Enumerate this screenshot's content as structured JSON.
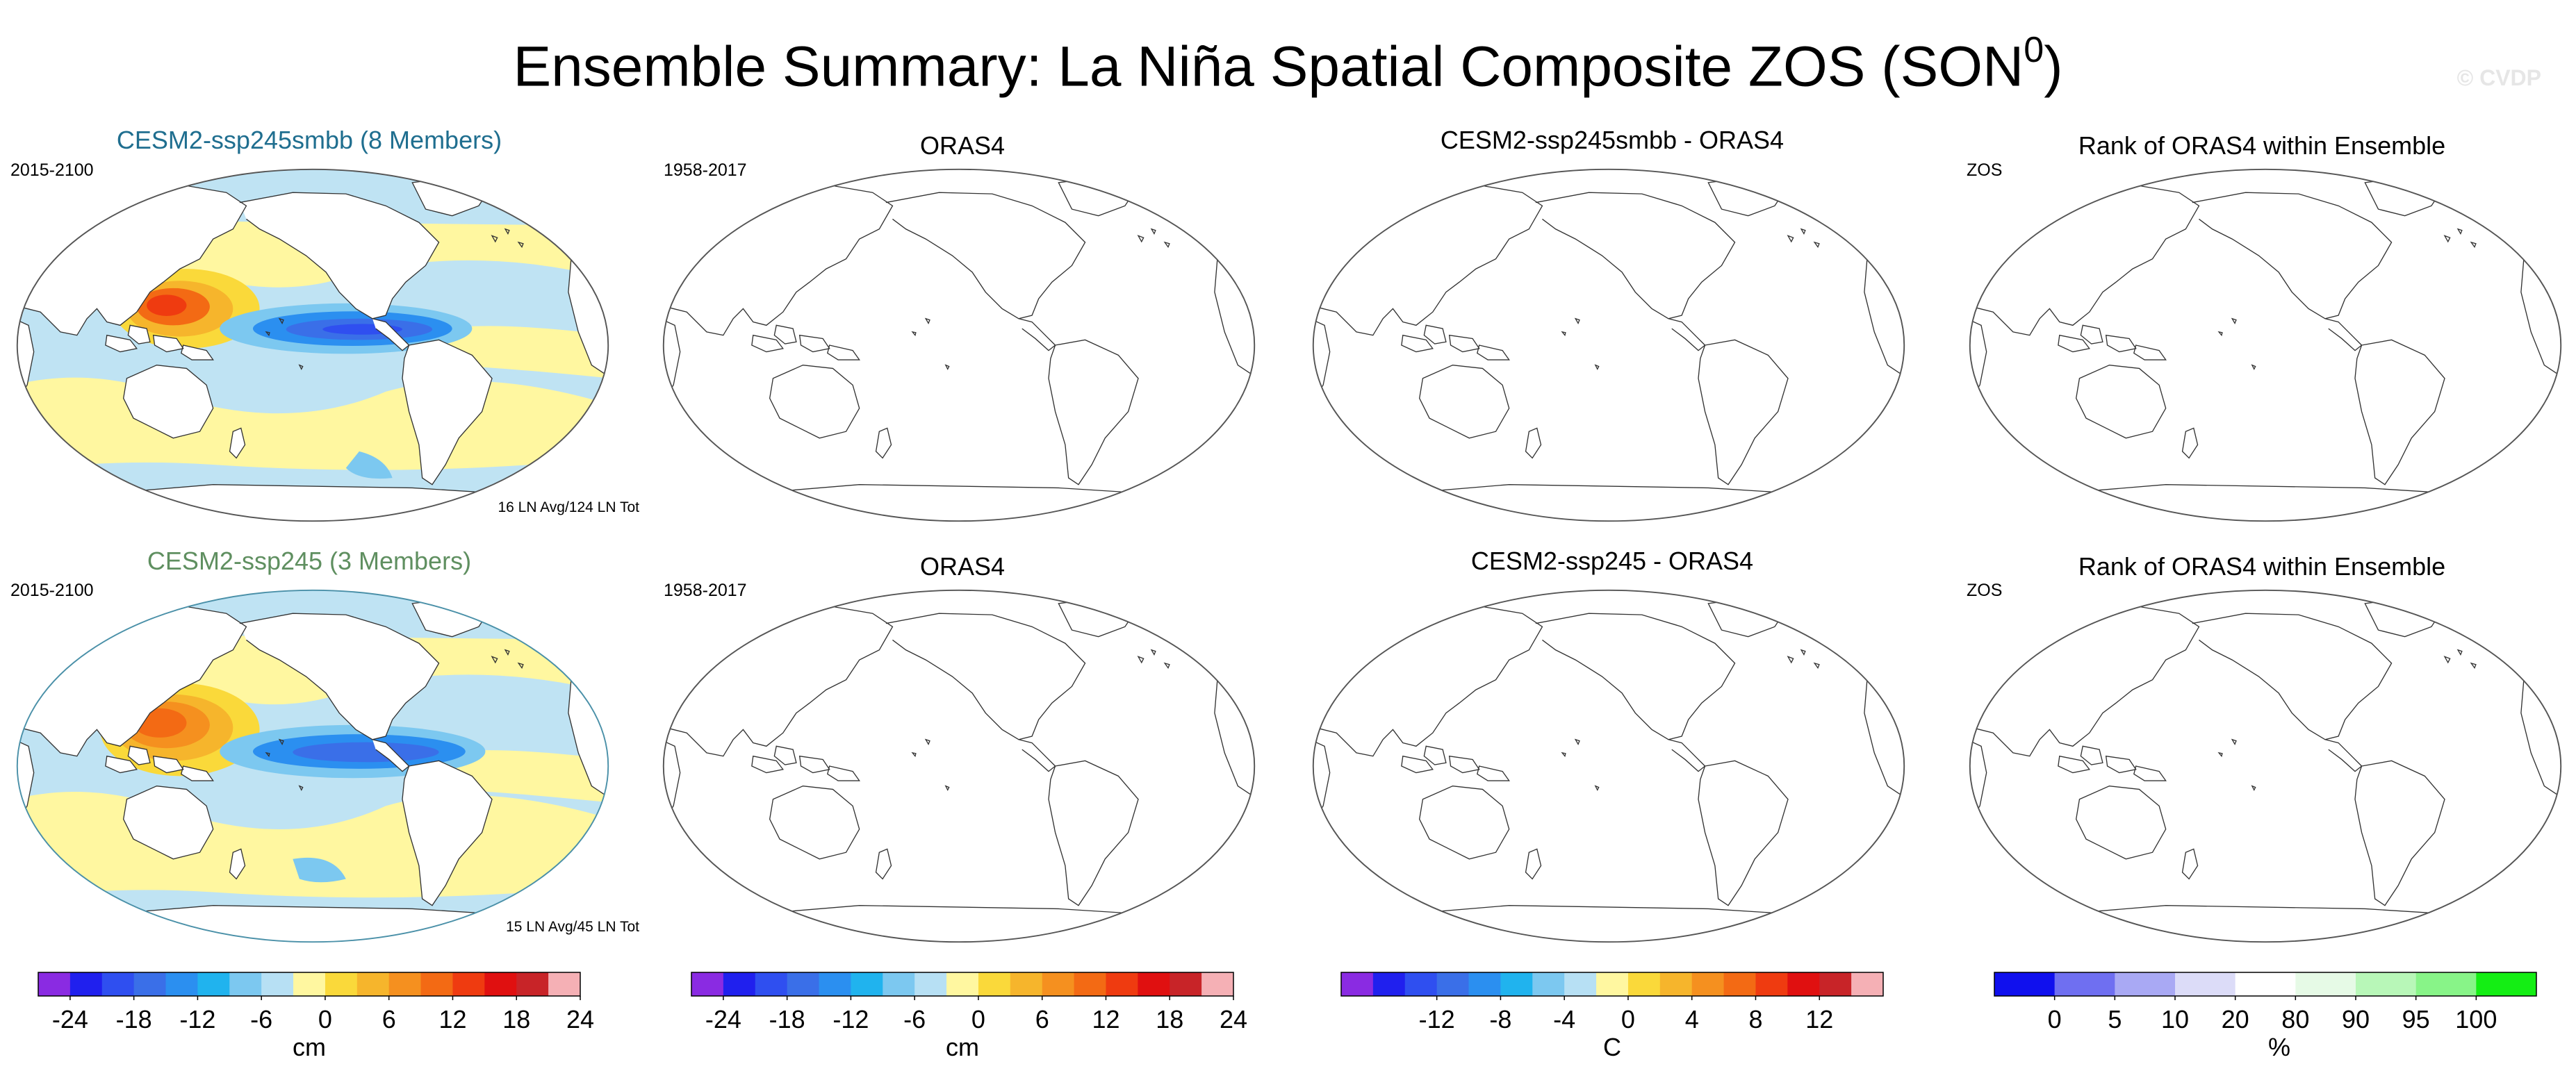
{
  "title": {
    "main": "Ensemble Summary: La Niña Spatial Composite ZOS (SON",
    "superscript": "0",
    "close": ")"
  },
  "watermark": "© CVDP",
  "colors": {
    "ocean_base": "#bfe3f3",
    "rank_scale": [
      "#1010ee",
      "#6f6ff1",
      "#a9a9f4",
      "#dcdcf8",
      "#ffffff",
      "#e6fae6",
      "#b8f7b8",
      "#88f488",
      "#14ee14"
    ],
    "diverging_scale": [
      "#8a2be2",
      "#2020ee",
      "#2f4ff0",
      "#3a6fe8",
      "#2b8ff0",
      "#20b3ee",
      "#7cc8f0",
      "#b7e0f4",
      "#fff7a0",
      "#fad93a",
      "#f6b52c",
      "#f5901f",
      "#f36a14",
      "#ef3b10",
      "#e01010",
      "#c82428",
      "#f5b0b5"
    ]
  },
  "rows": [
    {
      "panels": [
        {
          "title": "CESM2-ssp245smbb (8 Members)",
          "title_color": "#1f6e8f",
          "label": "2015-2100",
          "footer": "16 LN Avg/124 LN Tot",
          "filled": true
        },
        {
          "title": "ORAS4",
          "title_color": "#000000",
          "label": "1958-2017",
          "footer": "",
          "filled": false
        },
        {
          "title": "CESM2-ssp245smbb - ORAS4",
          "title_color": "#000000",
          "label": "",
          "footer": "",
          "filled": false
        },
        {
          "title": "Rank of ORAS4 within Ensemble",
          "title_color": "#000000",
          "label": "ZOS",
          "footer": "",
          "filled": false
        }
      ]
    },
    {
      "panels": [
        {
          "title": "CESM2-ssp245 (3 Members)",
          "title_color": "#5f8f60",
          "label": "2015-2100",
          "footer": "15 LN Avg/45 LN Tot",
          "filled": true
        },
        {
          "title": "ORAS4",
          "title_color": "#000000",
          "label": "1958-2017",
          "footer": "",
          "filled": false
        },
        {
          "title": "CESM2-ssp245 - ORAS4",
          "title_color": "#000000",
          "label": "",
          "footer": "",
          "filled": false
        },
        {
          "title": "Rank of ORAS4 within Ensemble",
          "title_color": "#000000",
          "label": "ZOS",
          "footer": "",
          "filled": false
        }
      ]
    }
  ],
  "colorbars": [
    {
      "unit": "cm",
      "type": "diverging",
      "ticks": [
        "-24",
        "-18",
        "-12",
        "-6",
        "0",
        "6",
        "12",
        "18",
        "24"
      ],
      "tick_boundaries": [
        1,
        3,
        5,
        7,
        9,
        11,
        13,
        15,
        17
      ]
    },
    {
      "unit": "cm",
      "type": "diverging",
      "ticks": [
        "-24",
        "-18",
        "-12",
        "-6",
        "0",
        "6",
        "12",
        "18",
        "24"
      ],
      "tick_boundaries": [
        1,
        3,
        5,
        7,
        9,
        11,
        13,
        15,
        17
      ]
    },
    {
      "unit": "C",
      "type": "diverging",
      "ticks": [
        "-12",
        "-8",
        "-4",
        "0",
        "4",
        "8",
        "12"
      ],
      "tick_boundaries": [
        3,
        5,
        7,
        9,
        11,
        13,
        15
      ]
    },
    {
      "unit": "%",
      "type": "rank",
      "ticks": [
        "0",
        "5",
        "10",
        "20",
        "80",
        "90",
        "95",
        "100"
      ],
      "tick_boundaries": [
        1,
        2,
        3,
        4,
        5,
        6,
        7,
        8
      ]
    }
  ]
}
